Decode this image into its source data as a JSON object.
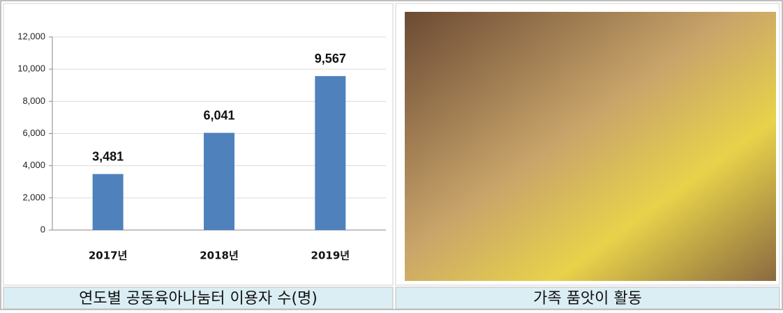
{
  "chart_data": {
    "type": "bar",
    "categories": [
      "2017년",
      "2018년",
      "2019년"
    ],
    "values": [
      3481,
      6041,
      9567
    ],
    "value_labels": [
      "3,481",
      "6,041",
      "9,567"
    ],
    "color": "#4f81bd",
    "ylim": [
      0,
      12000
    ],
    "yticks": [
      0,
      {
        "value": 2000,
        "label": "2,000"
      },
      {
        "value": 4000,
        "label": "4,000"
      },
      {
        "value": 6000,
        "label": "6,000"
      },
      {
        "value": 8000,
        "label": "8,000"
      },
      {
        "value": 10000,
        "label": "10,000"
      },
      {
        "value": 12000,
        "label": "12,000"
      }
    ],
    "grid": true
  },
  "captions": [
    "연도별 공동육아나눔터 이용자 수(명)",
    "가족 품앗이 활동"
  ]
}
